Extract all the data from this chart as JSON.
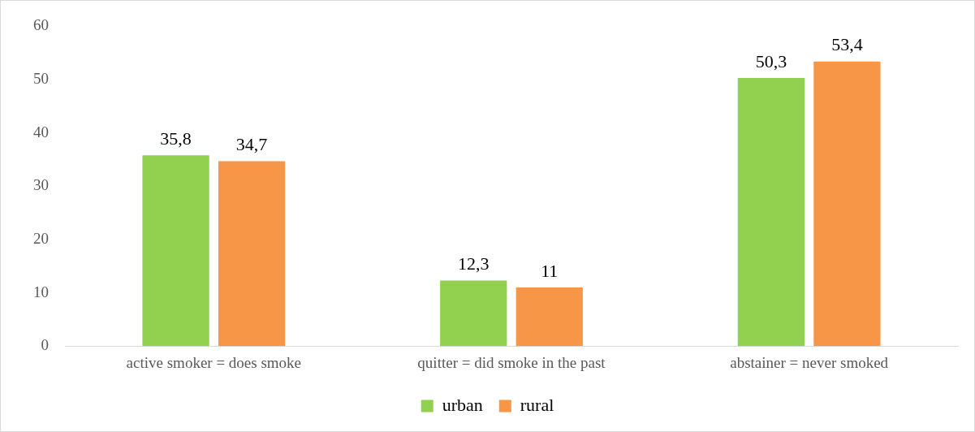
{
  "chart_data": {
    "type": "bar",
    "categories": [
      "active smoker = does smoke",
      "quitter = did smoke in the past",
      "abstainer = never smoked"
    ],
    "series": [
      {
        "name": "urban",
        "color": "#92d050",
        "values": [
          35.8,
          12.3,
          50.3
        ],
        "value_labels": [
          "35,8",
          "12,3",
          "50,3"
        ]
      },
      {
        "name": "rural",
        "color": "#f79646",
        "values": [
          34.7,
          11,
          53.4
        ],
        "value_labels": [
          "34,7",
          "11",
          "53,4"
        ]
      }
    ],
    "ylim": [
      0,
      60
    ],
    "yticks": [
      0,
      10,
      20,
      30,
      40,
      50,
      60
    ],
    "grid": false,
    "legend": "bottom"
  }
}
